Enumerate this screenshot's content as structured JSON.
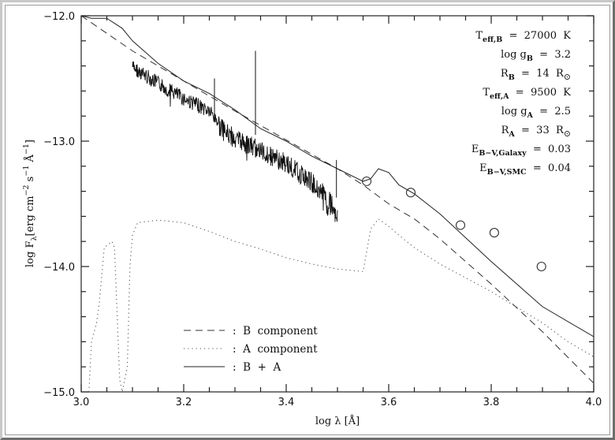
{
  "chart_data": {
    "type": "line",
    "title": "",
    "xlabel": "log λ [Å]",
    "ylabel": "log F_λ [erg cm^-2 s^-1 Å^-1]",
    "xlim": [
      3.0,
      4.0
    ],
    "ylim": [
      -15.0,
      -12.0
    ],
    "x_ticks": [
      "3.0",
      "3.2",
      "3.4",
      "3.6",
      "3.8",
      "4.0"
    ],
    "y_ticks": [
      "-12.0",
      "-13.0",
      "-14.0",
      "-15.0"
    ],
    "grid": false,
    "legend_position": "lower left",
    "legend": [
      {
        "style": "dashed",
        "label": ": B component"
      },
      {
        "style": "dotted",
        "label": ": A component"
      },
      {
        "style": "solid",
        "label": ": B + A"
      }
    ],
    "series": [
      {
        "name": "B component",
        "style": "dashed",
        "x": [
          3.0,
          3.1,
          3.2,
          3.3,
          3.4,
          3.5,
          3.55,
          3.6,
          3.65,
          3.7,
          3.8,
          3.9,
          4.0
        ],
        "y": [
          -12.0,
          -12.28,
          -12.52,
          -12.76,
          -12.99,
          -13.22,
          -13.35,
          -13.5,
          -13.62,
          -13.78,
          -14.14,
          -14.52,
          -14.93
        ]
      },
      {
        "name": "A component",
        "style": "dotted",
        "x": [
          3.015,
          3.02,
          3.03,
          3.035,
          3.045,
          3.06,
          3.065,
          3.075,
          3.08,
          3.09,
          3.095,
          3.1,
          3.11,
          3.15,
          3.2,
          3.25,
          3.3,
          3.35,
          3.4,
          3.45,
          3.5,
          3.55,
          3.565,
          3.58,
          3.6,
          3.62,
          3.65,
          3.7,
          3.8,
          3.9,
          3.95,
          4.0
        ],
        "y": [
          -15.0,
          -14.6,
          -14.45,
          -14.3,
          -13.85,
          -13.8,
          -13.85,
          -14.9,
          -15.0,
          -14.8,
          -14.0,
          -13.75,
          -13.65,
          -13.63,
          -13.65,
          -13.72,
          -13.8,
          -13.86,
          -13.93,
          -13.98,
          -14.02,
          -14.04,
          -13.7,
          -13.62,
          -13.68,
          -13.75,
          -13.85,
          -13.98,
          -14.2,
          -14.45,
          -14.6,
          -14.72
        ]
      },
      {
        "name": "B + A",
        "style": "solid",
        "x": [
          3.0,
          3.02,
          3.05,
          3.08,
          3.1,
          3.15,
          3.2,
          3.25,
          3.3,
          3.35,
          3.4,
          3.45,
          3.5,
          3.55,
          3.565,
          3.58,
          3.6,
          3.62,
          3.65,
          3.7,
          3.8,
          3.9,
          4.0
        ],
        "y": [
          -12.0,
          -12.02,
          -12.02,
          -12.1,
          -12.2,
          -12.38,
          -12.52,
          -12.62,
          -12.75,
          -12.9,
          -13.0,
          -13.12,
          -13.22,
          -13.32,
          -13.3,
          -13.22,
          -13.25,
          -13.35,
          -13.42,
          -13.58,
          -13.96,
          -14.32,
          -14.56
        ]
      },
      {
        "name": "Observed spectrum",
        "style": "solid-noisy",
        "x": [
          3.1,
          3.15,
          3.2,
          3.25,
          3.28,
          3.3,
          3.35,
          3.4,
          3.45,
          3.5
        ],
        "y": [
          -12.35,
          -12.48,
          -12.6,
          -12.7,
          -12.85,
          -12.9,
          -13.0,
          -13.1,
          -13.25,
          -13.45
        ]
      },
      {
        "name": "Photometry",
        "style": "open-circles",
        "x": [
          3.557,
          3.643,
          3.74,
          3.806,
          3.898
        ],
        "y": [
          -13.32,
          -13.41,
          -13.67,
          -13.73,
          -14.0
        ]
      }
    ],
    "annotations": [
      {
        "label": "T",
        "sub": "eff,B",
        "rest": " = 27000 K"
      },
      {
        "label": "log g",
        "sub": "B",
        "rest": " = 3.2"
      },
      {
        "label": "R",
        "sub": "B",
        "rest": " = 14 R",
        "suffix_sub": "⊙"
      },
      {
        "label": "T",
        "sub": "eff,A",
        "rest": " = 9500 K"
      },
      {
        "label": "log g",
        "sub": "A",
        "rest": " = 2.5"
      },
      {
        "label": "R",
        "sub": "A",
        "rest": " = 33 R",
        "suffix_sub": "⊙"
      },
      {
        "label": "E",
        "sub": "B−V,Galaxy",
        "rest": " = 0.03"
      },
      {
        "label": "E",
        "sub": "B−V,SMC",
        "rest": " = 0.04"
      }
    ]
  },
  "labels": {
    "x_axis_title": "log λ [Å]",
    "y_axis_main": "log F",
    "y_axis_sub": "λ",
    "y_axis_units": "[erg cm",
    "y_axis_exp1": "−2",
    "y_axis_units2": " s",
    "y_axis_exp2": "−1",
    "y_axis_units3": " Å",
    "y_axis_exp3": "−1",
    "y_axis_close": "]"
  }
}
